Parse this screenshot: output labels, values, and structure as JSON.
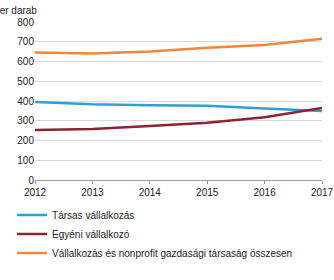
{
  "chart_data": {
    "type": "line",
    "ylabel": "Ezer darab",
    "x": [
      2012,
      2013,
      2014,
      2015,
      2016,
      2017
    ],
    "series": [
      {
        "name": "Társas vállalkozás",
        "color": "#2f9fd8",
        "values": [
          395,
          383,
          378,
          376,
          362,
          350
        ]
      },
      {
        "name": "Egyéni vállalkozó",
        "color": "#8b2332",
        "values": [
          253,
          258,
          273,
          290,
          318,
          365
        ]
      },
      {
        "name": "Vállalkozás és nonprofit gazdasági társaság összesen",
        "color": "#f0873a",
        "values": [
          645,
          641,
          651,
          670,
          683,
          715
        ]
      }
    ],
    "xlim": [
      2012,
      2017
    ],
    "xticks": [
      2012,
      2013,
      2014,
      2015,
      2016,
      2017
    ],
    "ylim": [
      0,
      800
    ],
    "yticks": [
      0,
      100,
      200,
      300,
      400,
      500,
      600,
      700,
      800
    ],
    "grid": true,
    "legend": "bottom"
  }
}
